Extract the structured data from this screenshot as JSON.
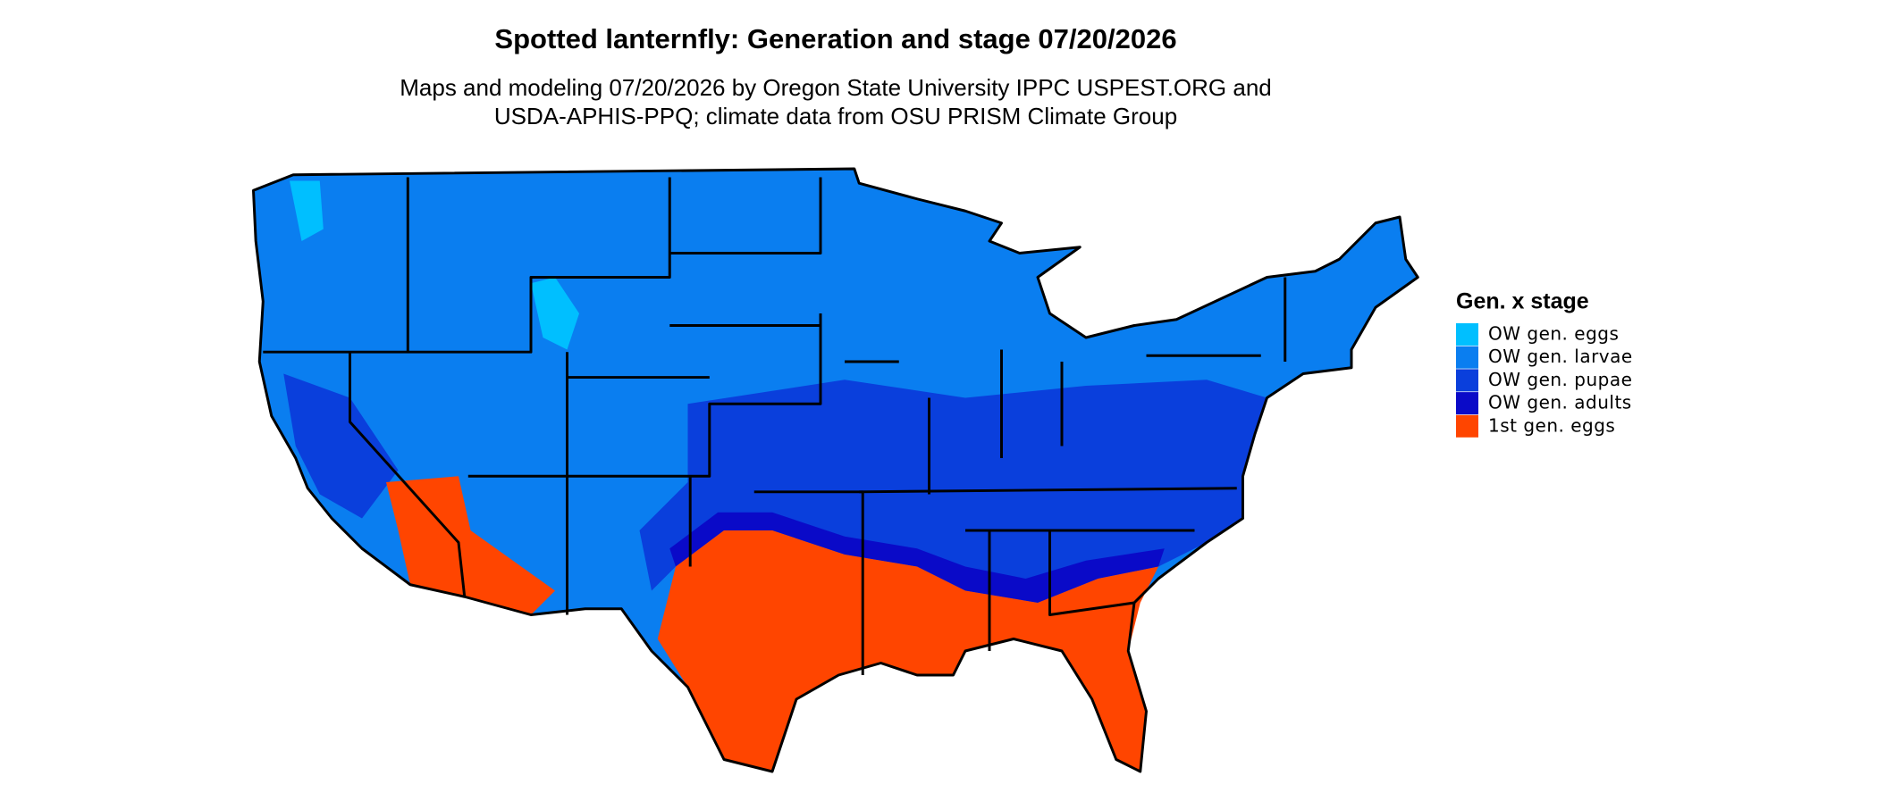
{
  "header": {
    "title": "Spotted lanternfly: Generation and stage 07/20/2026",
    "subtitle_lines": [
      "Maps and modeling 07/20/2026 by Oregon State University IPPC USPEST.ORG and",
      "USDA-APHIS-PPQ; climate data from OSU PRISM Climate Group"
    ]
  },
  "legend": {
    "title": "Gen. x stage",
    "items": [
      {
        "label": "OW gen. eggs",
        "color": "#00bfff"
      },
      {
        "label": "OW gen. larvae",
        "color": "#0a7ef0"
      },
      {
        "label": "OW gen. pupae",
        "color": "#0a3fdc"
      },
      {
        "label": "OW gen. adults",
        "color": "#0a0ac8"
      },
      {
        "label": "1st gen. eggs",
        "color": "#ff4500"
      }
    ]
  }
}
